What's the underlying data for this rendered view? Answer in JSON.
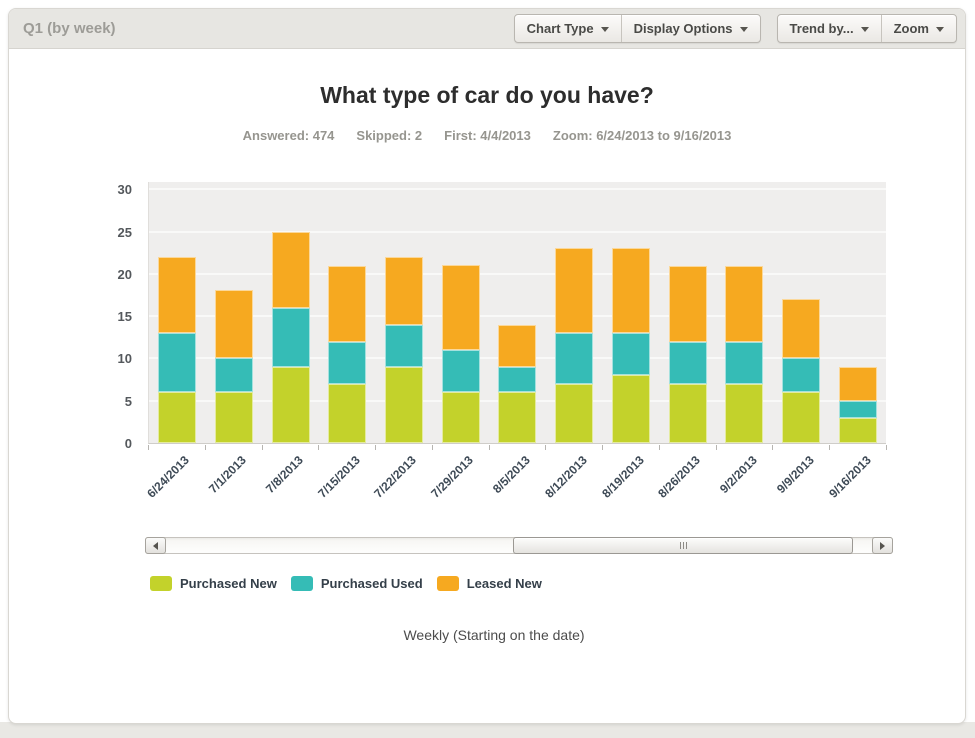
{
  "header": {
    "title": "Q1 (by week)"
  },
  "toolbar": {
    "groups": [
      [
        "Chart Type",
        "Display Options"
      ],
      [
        "Trend by...",
        "Zoom"
      ]
    ]
  },
  "stats": {
    "answered": "Answered: 474",
    "skipped": "Skipped: 2",
    "first": "First: 4/4/2013",
    "zoom": "Zoom: 6/24/2013 to 9/16/2013"
  },
  "chart_data": {
    "type": "bar",
    "stacked": true,
    "title": "What type of car do you have?",
    "categories": [
      "6/24/2013",
      "7/1/2013",
      "7/8/2013",
      "7/15/2013",
      "7/22/2013",
      "7/29/2013",
      "8/5/2013",
      "8/12/2013",
      "8/19/2013",
      "8/26/2013",
      "9/2/2013",
      "9/9/2013",
      "9/16/2013"
    ],
    "series": [
      {
        "name": "Purchased New",
        "color": "#c3d22b",
        "values": [
          6,
          6,
          9,
          7,
          9,
          6,
          6,
          7,
          8,
          7,
          7,
          6,
          3
        ]
      },
      {
        "name": "Purchased Used",
        "color": "#35bcb6",
        "values": [
          7,
          4,
          7,
          5,
          5,
          5,
          3,
          6,
          5,
          5,
          5,
          4,
          2
        ]
      },
      {
        "name": "Leased New",
        "color": "#f6a920",
        "values": [
          9,
          8,
          9,
          9,
          8,
          10,
          5,
          10,
          10,
          9,
          9,
          7,
          4
        ]
      }
    ],
    "ylim": [
      0,
      30
    ],
    "ytick_step": 5,
    "grid": true,
    "legend_position": "bottom",
    "plot_bg": "#efeeed",
    "xlabel": "Weekly (Starting on the date)",
    "ylabel": ""
  },
  "footer": {
    "caption": "Weekly (Starting on the date)"
  }
}
